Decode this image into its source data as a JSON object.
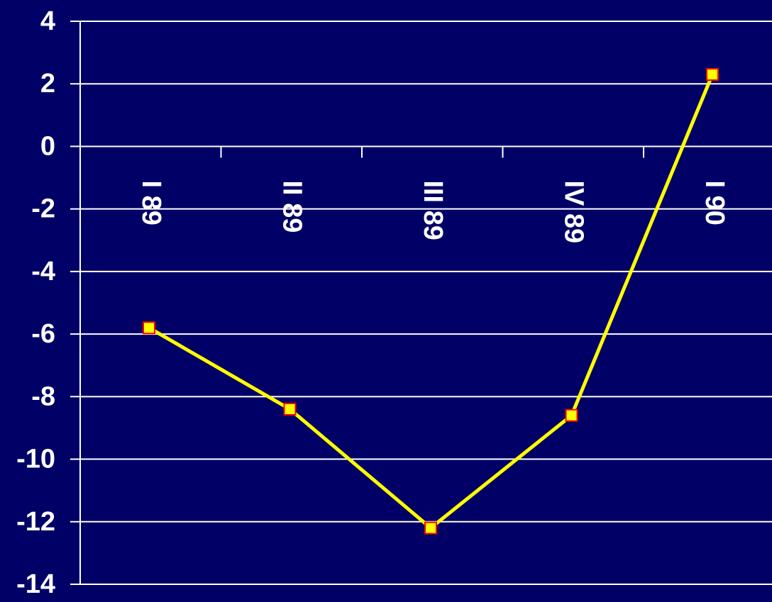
{
  "colors": {
    "background": "#000066",
    "gridline": "#ffffff",
    "axis": "#ffffff",
    "text": "#ffffff",
    "series_line": "#ffff00",
    "marker_fill": "#ffff00",
    "marker_stroke": "#ff0000"
  },
  "chart_data": {
    "type": "line",
    "categories": [
      "I 89",
      "II 89",
      "III 89",
      "IV 89",
      "I 90"
    ],
    "series": [
      {
        "values": [
          -5.8,
          -8.4,
          -12.2,
          -8.6,
          2.3
        ]
      }
    ],
    "ylim": [
      -14,
      4
    ],
    "yticks": [
      "4",
      "2",
      "0",
      "-2",
      "-4",
      "-6",
      "-8",
      "-10",
      "-12",
      "-14"
    ],
    "grid": true,
    "legend": "none",
    "category_label_orientation": "rotated 90 degrees clockwise",
    "marker": "square"
  }
}
